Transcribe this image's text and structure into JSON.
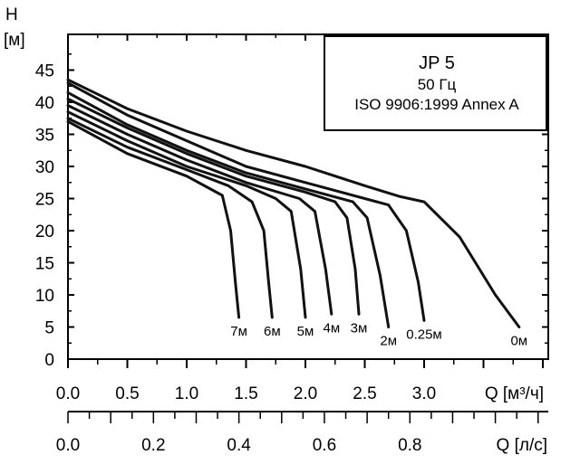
{
  "chart_data": {
    "type": "line",
    "title": "JP 5",
    "subtitle": "50 Гц",
    "note": "ISO 9906:1999 Annex A",
    "y_axis": {
      "symbol": "H",
      "unit": "[м]",
      "range": [
        0,
        50
      ],
      "ticks": [
        "0",
        "5",
        "10",
        "15",
        "20",
        "25",
        "30",
        "35",
        "40",
        "45"
      ]
    },
    "x_axis": {
      "label": "Q [м³/ч]",
      "range": [
        0,
        4
      ],
      "ticks": [
        "0.0",
        "0.5",
        "1.0",
        "1.5",
        "2.0",
        "2.5",
        "3.0"
      ]
    },
    "x2_axis": {
      "label": "Q [л/с]",
      "ticks": [
        "0.0",
        "0.2",
        "0.4",
        "0.6",
        "0.8"
      ],
      "tick_values_m3h": [
        0,
        0.72,
        1.44,
        2.16,
        2.88
      ]
    },
    "grid": false,
    "legend_position": "top-right",
    "series": [
      {
        "name": "0м",
        "x": [
          0.0,
          0.5,
          1.0,
          1.5,
          2.0,
          2.5,
          2.8,
          3.0,
          3.3,
          3.6,
          3.8
        ],
        "y": [
          43.5,
          39.0,
          35.5,
          32.5,
          30.0,
          27.0,
          25.3,
          24.5,
          19.0,
          10.0,
          5.0
        ]
      },
      {
        "name": "0.25м",
        "x": [
          0.0,
          0.5,
          1.0,
          1.5,
          2.0,
          2.5,
          2.7,
          2.85,
          2.95,
          3.0
        ],
        "y": [
          43.0,
          38.0,
          34.0,
          30.0,
          27.5,
          25.0,
          24.0,
          20.0,
          12.0,
          6.0
        ]
      },
      {
        "name": "2м",
        "x": [
          0.0,
          0.5,
          1.0,
          1.5,
          2.0,
          2.4,
          2.52,
          2.63,
          2.7
        ],
        "y": [
          41.5,
          36.5,
          32.5,
          29.0,
          26.5,
          24.5,
          22.0,
          13.0,
          5.0
        ]
      },
      {
        "name": "3м",
        "x": [
          0.0,
          0.5,
          1.0,
          1.5,
          2.0,
          2.25,
          2.35,
          2.42,
          2.45
        ],
        "y": [
          40.5,
          36.0,
          32.0,
          28.5,
          26.0,
          24.5,
          22.0,
          14.0,
          7.0
        ]
      },
      {
        "name": "4м",
        "x": [
          0.0,
          0.5,
          1.0,
          1.5,
          1.95,
          2.08,
          2.17,
          2.22
        ],
        "y": [
          39.5,
          35.0,
          31.0,
          27.5,
          25.0,
          23.0,
          14.0,
          7.0
        ]
      },
      {
        "name": "5м",
        "x": [
          0.0,
          0.5,
          1.0,
          1.5,
          1.75,
          1.88,
          1.96,
          2.0
        ],
        "y": [
          38.5,
          34.0,
          30.0,
          27.0,
          25.0,
          23.0,
          14.0,
          6.5
        ]
      },
      {
        "name": "6м",
        "x": [
          0.0,
          0.5,
          1.0,
          1.35,
          1.55,
          1.65,
          1.69,
          1.72
        ],
        "y": [
          37.5,
          33.0,
          29.5,
          27.0,
          24.5,
          20.0,
          12.0,
          6.5
        ]
      },
      {
        "name": "7м",
        "x": [
          0.0,
          0.5,
          1.0,
          1.3,
          1.37,
          1.41,
          1.44
        ],
        "y": [
          37.0,
          32.0,
          28.5,
          25.5,
          20.0,
          12.0,
          6.5
        ]
      }
    ]
  }
}
